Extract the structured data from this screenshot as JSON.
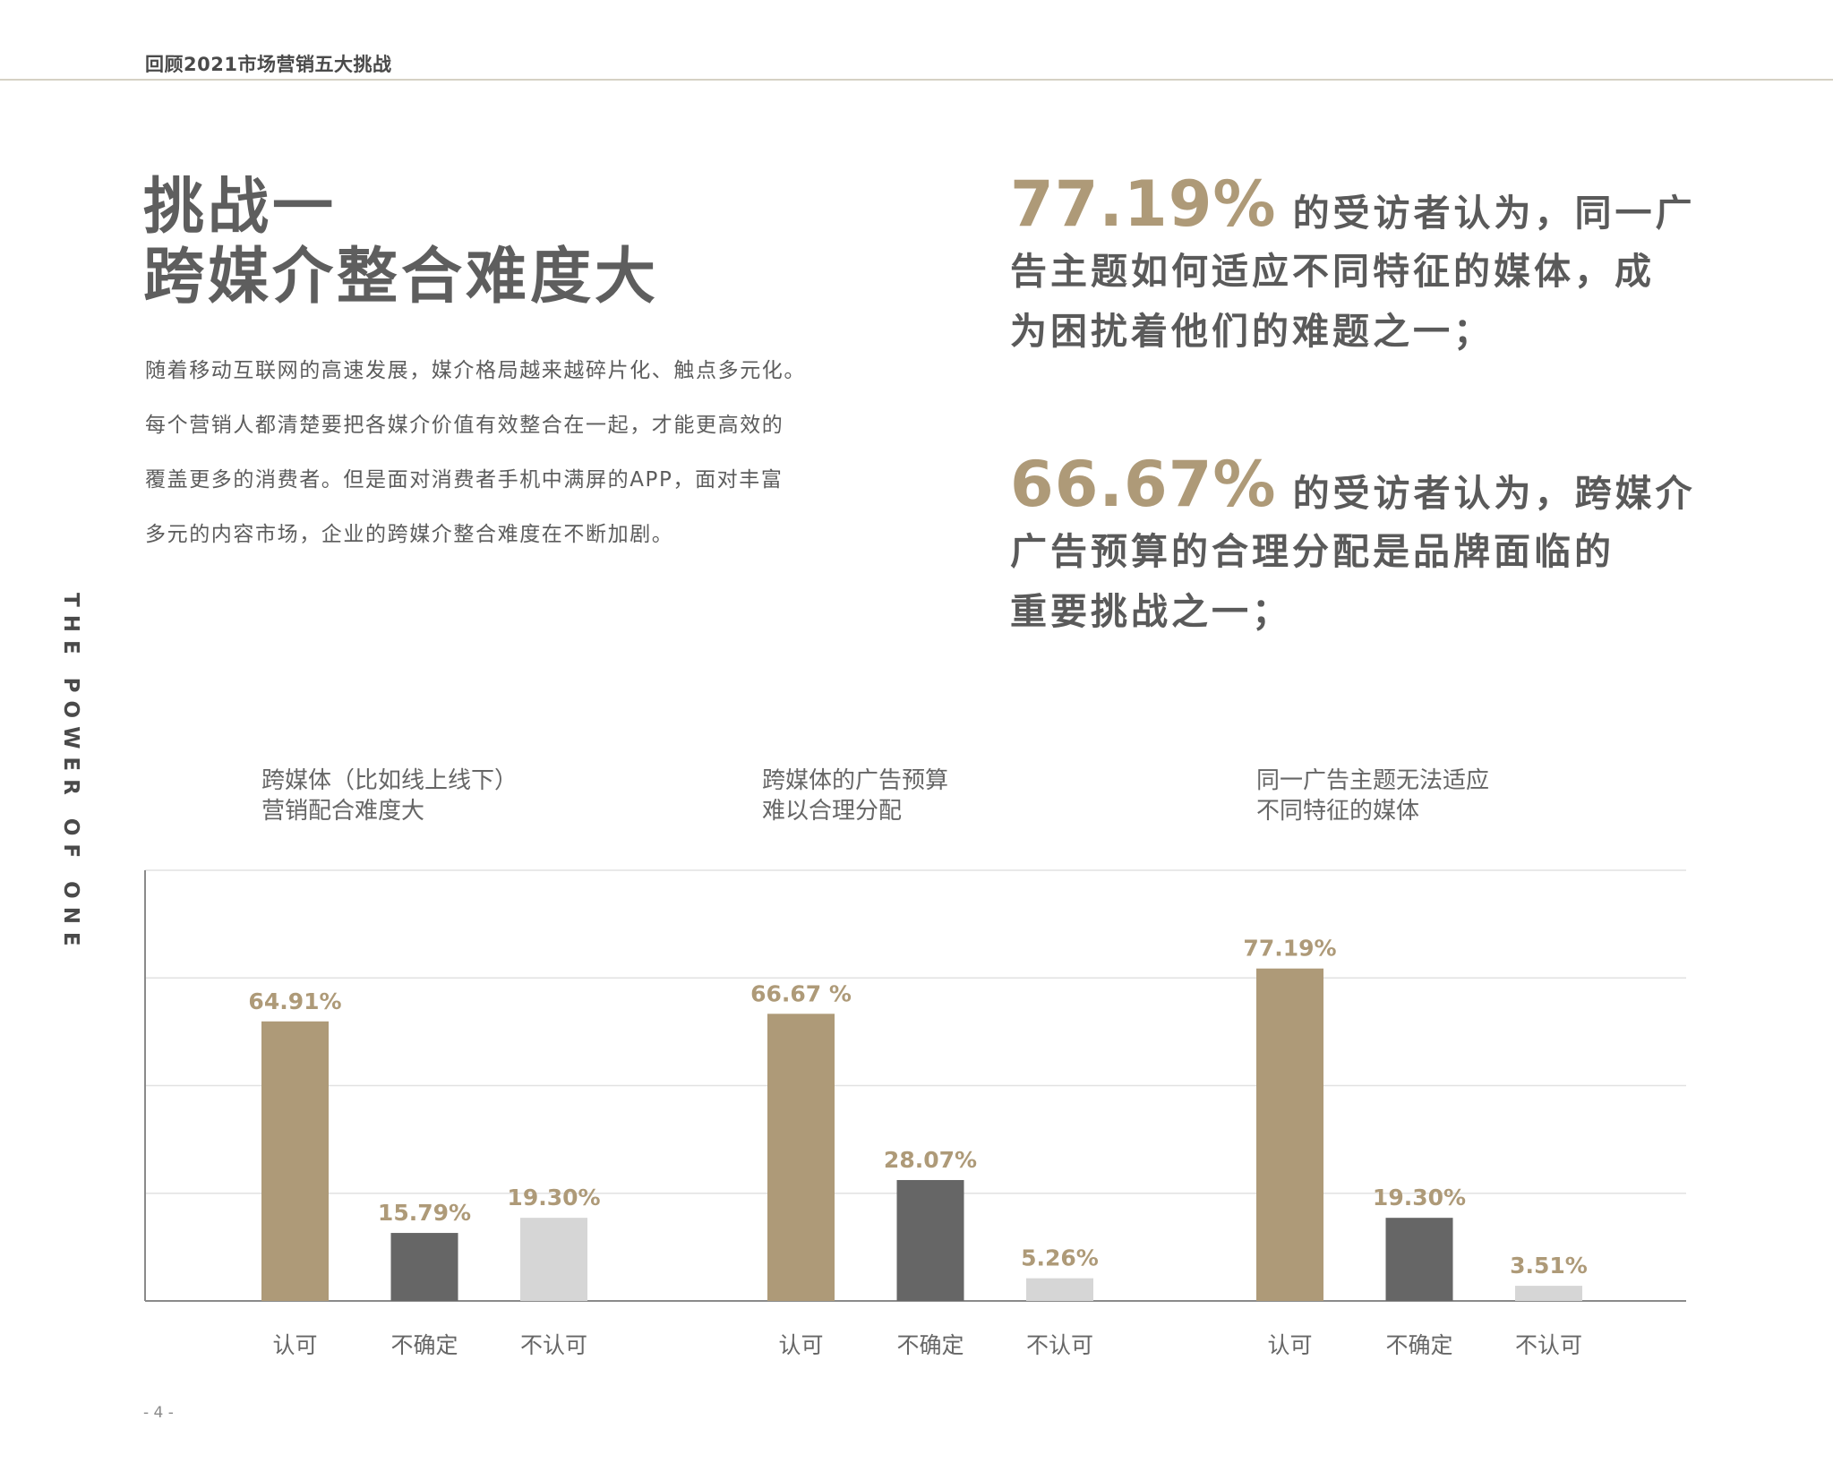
{
  "header": {
    "title": "回顾2021市场营销五大挑战"
  },
  "side_text": "THE POWER OF ONE",
  "title": {
    "line1": "挑战一",
    "line2": "跨媒介整合难度大"
  },
  "body": [
    "随着移动互联网的高速发展，媒介格局越来越碎片化、触点多元化。",
    "每个营销人都清楚要把各媒介价值有效整合在一起，才能更高效的",
    "覆盖更多的消费者。但是面对消费者手机中满屏的APP，面对丰富",
    "多元的内容市场，企业的跨媒介整合难度在不断加剧。"
  ],
  "stats": [
    {
      "number": "77.19%",
      "lines": [
        "的受访者认为，同一广",
        "告主题如何适应不同特征的媒体，成",
        "为困扰着他们的难题之一；"
      ]
    },
    {
      "number": "66.67%",
      "lines": [
        "的受访者认为，跨媒介",
        "广告预算的合理分配是品牌面临的",
        "重要挑战之一；"
      ]
    }
  ],
  "colors": {
    "approve": "#ae9a78",
    "unsure": "#666666",
    "disapprove": "#d6d6d6",
    "label": "#ae9a78"
  },
  "chart_data": {
    "type": "bar",
    "ylim": [
      0,
      100
    ],
    "grid": true,
    "groups": [
      {
        "title": [
          "跨媒体（比如线上线下）",
          "营销配合难度大"
        ],
        "categories": [
          "认可",
          "不确定",
          "不认可"
        ],
        "values": [
          64.91,
          15.79,
          19.3
        ],
        "labels": [
          "64.91%",
          "15.79%",
          "19.30%"
        ]
      },
      {
        "title": [
          "跨媒体的广告预算",
          "难以合理分配"
        ],
        "categories": [
          "认可",
          "不确定",
          "不认可"
        ],
        "values": [
          66.67,
          28.07,
          5.26
        ],
        "labels": [
          "66.67 %",
          "28.07%",
          "5.26%"
        ]
      },
      {
        "title": [
          "同一广告主题无法适应",
          "不同特征的媒体"
        ],
        "categories": [
          "认可",
          "不确定",
          "不认可"
        ],
        "values": [
          77.19,
          19.3,
          3.51
        ],
        "labels": [
          "77.19%",
          "19.30%",
          "3.51%"
        ]
      }
    ]
  },
  "page_number": "- 4 -"
}
